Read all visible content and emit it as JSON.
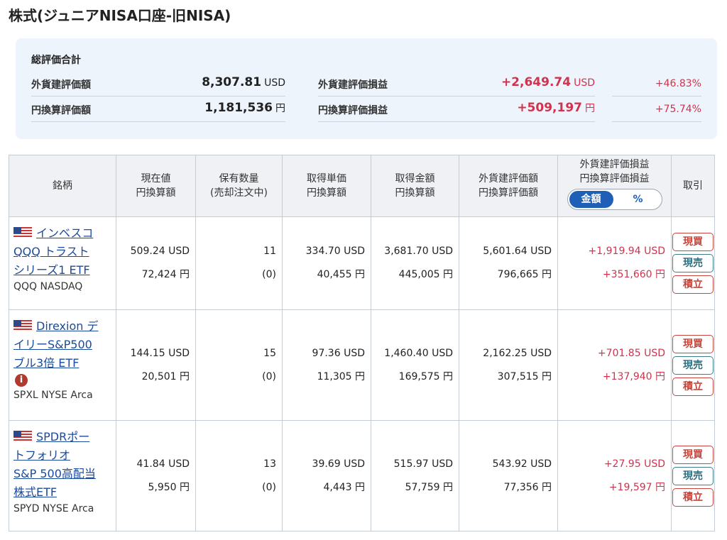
{
  "page": {
    "title": "株式(ジュニアNISA口座-旧NISA)"
  },
  "summary": {
    "heading": "総評価合計",
    "foreign_value_label": "外貨建評価額",
    "foreign_value": "8,307.81",
    "foreign_unit": "USD",
    "yen_value_label": "円換算評価額",
    "yen_value": "1,181,536",
    "yen_unit": "円",
    "foreign_pl_label": "外貨建評価損益",
    "foreign_pl": "+2,649.74",
    "foreign_pl_unit": "USD",
    "foreign_pl_pct": "+46.83%",
    "yen_pl_label": "円換算評価損益",
    "yen_pl": "+509,197",
    "yen_pl_unit": "円",
    "yen_pl_pct": "+75.74%"
  },
  "table": {
    "headers": {
      "name": "銘柄",
      "price_1": "現在値",
      "price_2": "円換算額",
      "qty_1": "保有数量",
      "qty_2": "(売却注文中)",
      "unit_cost_1": "取得単価",
      "unit_cost_2": "円換算額",
      "cost_1": "取得金額",
      "cost_2": "円換算額",
      "value_1": "外貨建評価額",
      "value_2": "円換算評価額",
      "pl_1": "外貨建評価損益",
      "pl_2": "円換算評価損益",
      "toggle_amount": "金額",
      "toggle_pct": "%",
      "trade": "取引"
    },
    "actions": {
      "buy": "現買",
      "sell": "現売",
      "plan": "積立"
    },
    "rows": [
      {
        "name_lines": [
          "インベスコ",
          "QQQ トラスト",
          "シリーズ1 ETF"
        ],
        "ticker": "QQQ NASDAQ",
        "price_usd": "509.24 USD",
        "price_yen": "72,424 円",
        "qty": "11",
        "qty_pending": "(0)",
        "unit_cost_usd": "334.70 USD",
        "unit_cost_yen": "40,455 円",
        "cost_usd": "3,681.70 USD",
        "cost_yen": "445,005 円",
        "value_usd": "5,601.64 USD",
        "value_yen": "796,665 円",
        "pl_usd": "+1,919.94 USD",
        "pl_yen": "+351,660 円"
      },
      {
        "name_lines": [
          "Direxion デ",
          "イリーS&P500",
          "ブル3倍 ETF"
        ],
        "ticker": "SPXL NYSE Arca",
        "info_icon": "info-icon",
        "price_usd": "144.15 USD",
        "price_yen": "20,501 円",
        "qty": "15",
        "qty_pending": "(0)",
        "unit_cost_usd": "97.36 USD",
        "unit_cost_yen": "11,305 円",
        "cost_usd": "1,460.40 USD",
        "cost_yen": "169,575 円",
        "value_usd": "2,162.25 USD",
        "value_yen": "307,515 円",
        "pl_usd": "+701.85 USD",
        "pl_yen": "+137,940 円"
      },
      {
        "name_lines": [
          "SPDRポー",
          "トフォリオ",
          "S&P 500高配当",
          "株式ETF"
        ],
        "ticker": "SPYD NYSE Arca",
        "price_usd": "41.84 USD",
        "price_yen": "5,950 円",
        "qty": "13",
        "qty_pending": "(0)",
        "unit_cost_usd": "39.69 USD",
        "unit_cost_yen": "4,443 円",
        "cost_usd": "515.97 USD",
        "cost_yen": "57,759 円",
        "value_usd": "543.92 USD",
        "value_yen": "77,356 円",
        "pl_usd": "+27.95 USD",
        "pl_yen": "+19,597 円"
      }
    ]
  },
  "colors": {
    "gain": "#d0334d",
    "link": "#1a4a9c",
    "toggle_on": "#1f5fb5"
  }
}
